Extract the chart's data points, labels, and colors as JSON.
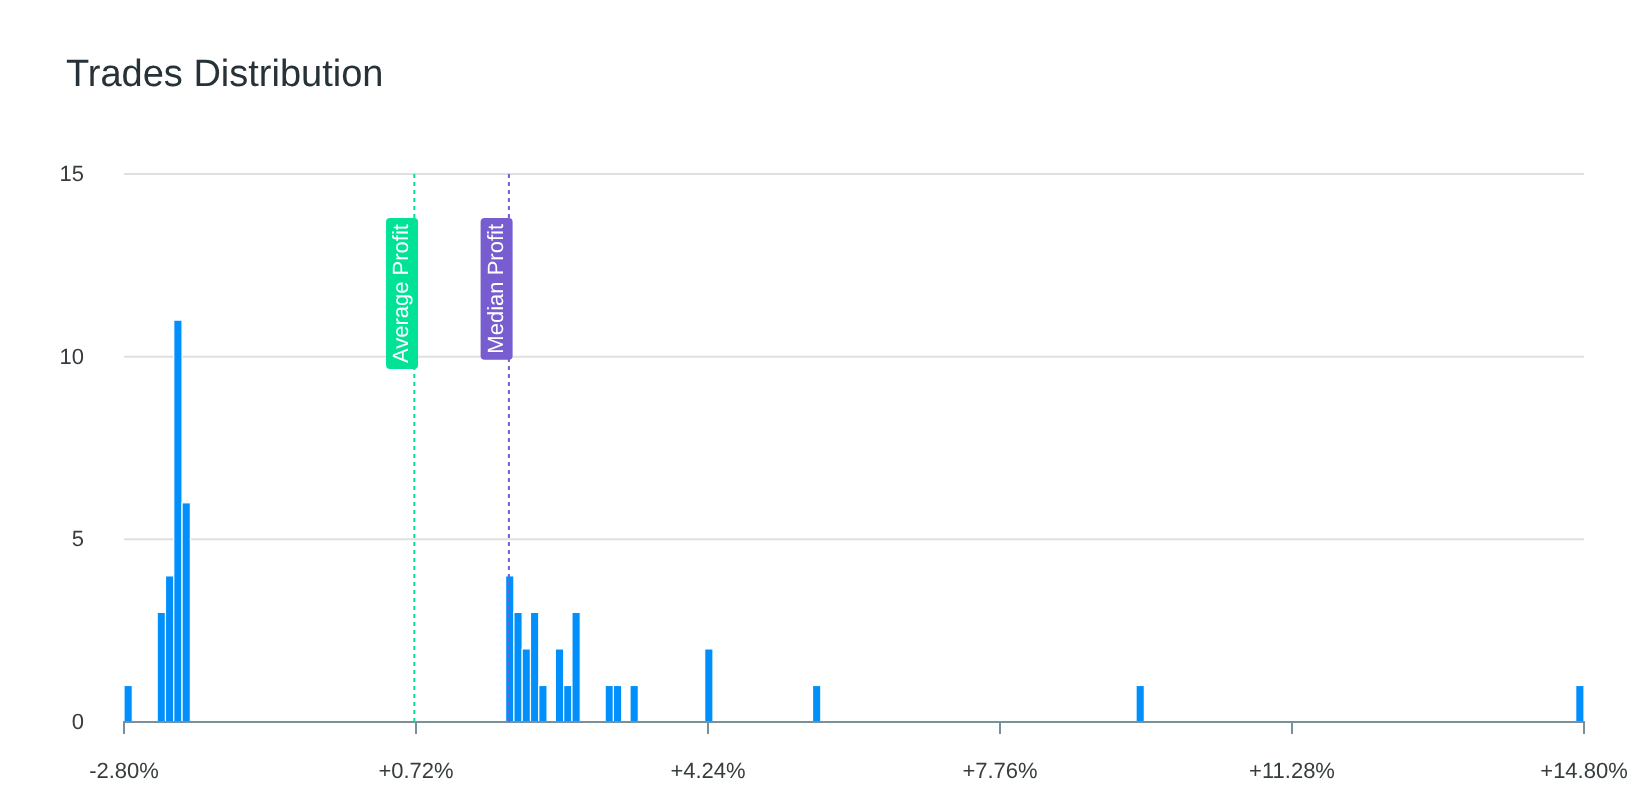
{
  "chart_data": {
    "type": "histogram",
    "title": "Trades Distribution",
    "bins": [
      -2.8,
      -2.7,
      -2.4,
      -2.3,
      -2.2,
      -2.1,
      -2.0,
      1.8,
      1.9,
      2.0,
      2.1,
      2.2,
      2.3,
      2.4,
      2.5,
      2.6,
      2.7,
      3.0,
      3.1,
      3.2,
      3.3,
      3.4,
      4.2,
      4.3,
      5.5,
      5.6,
      9.4,
      9.5,
      14.7,
      14.8
    ],
    "values": [
      1,
      0,
      3,
      4,
      11,
      6,
      0,
      4,
      3,
      2,
      3,
      1,
      0,
      2,
      1,
      3,
      0,
      1,
      1,
      0,
      1,
      0,
      2,
      0,
      1,
      0,
      1,
      0,
      1
    ],
    "color": "#008ffb",
    "xlim": [
      -2.8,
      14.8
    ],
    "xticks": [
      {
        "value": -2.8,
        "label": "-2.80%"
      },
      {
        "value": 0.72,
        "label": "+0.72%"
      },
      {
        "value": 4.24,
        "label": "+4.24%"
      },
      {
        "value": 7.76,
        "label": "+7.76%"
      },
      {
        "value": 11.28,
        "label": "+11.28%"
      },
      {
        "value": 14.8,
        "label": "+14.80%"
      }
    ],
    "ylim": [
      0,
      15
    ],
    "yticks": [
      0,
      5,
      10,
      15
    ],
    "grid": "y",
    "ref_lines": [
      {
        "axis": "x",
        "value": 0.7,
        "label": "Average Profit",
        "color": "#00e396",
        "line_style": "dotted"
      },
      {
        "axis": "x",
        "value": 1.84,
        "label": "Median Profit",
        "color": "#775dd0",
        "line_style": "dotted"
      }
    ]
  }
}
